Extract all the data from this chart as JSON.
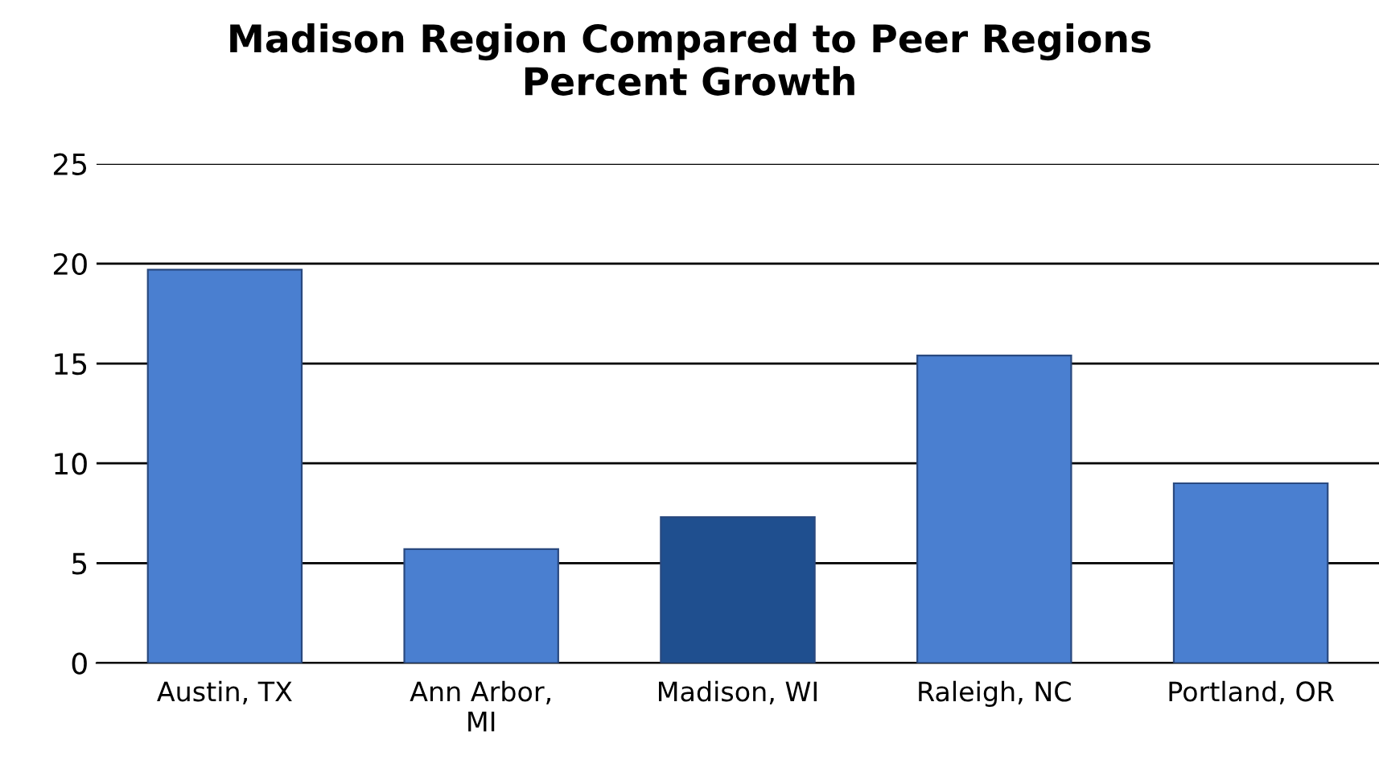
{
  "chart_data": {
    "type": "bar",
    "title": "Madison Region Compared to Peer Regions\nPercent Growth",
    "categories": [
      "Austin, TX",
      "Ann Arbor,\nMI",
      "Madison, WI",
      "Raleigh, NC",
      "Portland, OR"
    ],
    "values": [
      19.7,
      5.7,
      7.3,
      15.4,
      9.0
    ],
    "colors": [
      "#4a7fd0",
      "#4a7fd0",
      "#1f4f8f",
      "#4a7fd0",
      "#4a7fd0"
    ],
    "ylim": [
      0,
      25
    ],
    "yticks": [
      0,
      5,
      10,
      15,
      20,
      25
    ],
    "grid": "y"
  }
}
